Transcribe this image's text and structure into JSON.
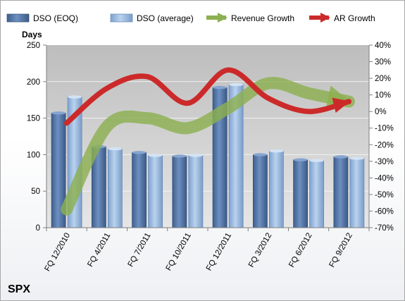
{
  "chart_data": {
    "type": "bar",
    "title": "",
    "company": "SPX",
    "ylabel": "Days",
    "categories": [
      "FQ 12/2010",
      "FQ 4/2011",
      "FQ 7/2011",
      "FQ 10/2011",
      "FQ 12/2011",
      "FQ 3/2012",
      "FQ 6/2012",
      "FQ 9/2012"
    ],
    "ylim": [
      0,
      250
    ],
    "yticks": [
      "0",
      "50",
      "100",
      "150",
      "200",
      "250"
    ],
    "y2lim": [
      -0.7,
      0.4
    ],
    "y2ticks": [
      "-70%",
      "-60%",
      "-50%",
      "-40%",
      "-30%",
      "-20%",
      "-10%",
      "0%",
      "10%",
      "20%",
      "30%",
      "40%"
    ],
    "bar_series": [
      {
        "name": "DSO (EOQ)",
        "values": [
          157,
          111,
          103,
          98,
          192,
          100,
          93,
          97
        ],
        "color": "#4f73a6"
      },
      {
        "name": "DSO (average)",
        "values": [
          179,
          108,
          99,
          99,
          196,
          105,
          92,
          95
        ],
        "color": "#9bbbe0"
      }
    ],
    "line_series": [
      {
        "name": "Revenue Growth",
        "values": [
          -0.59,
          -0.09,
          -0.04,
          -0.1,
          0.02,
          0.17,
          0.11,
          0.06
        ],
        "color": "#8cb050",
        "axis": "secondary"
      },
      {
        "name": "AR Growth",
        "values": [
          -0.07,
          0.14,
          0.21,
          0.05,
          0.25,
          0.08,
          0.0,
          0.06
        ],
        "color": "#cc2a2a",
        "axis": "secondary"
      }
    ],
    "grid": true,
    "legend_position": "top"
  },
  "colors": {
    "plot_top": "#c2c2c2",
    "plot_bottom": "#e4e4e4",
    "grid": "#f2f2f2"
  }
}
